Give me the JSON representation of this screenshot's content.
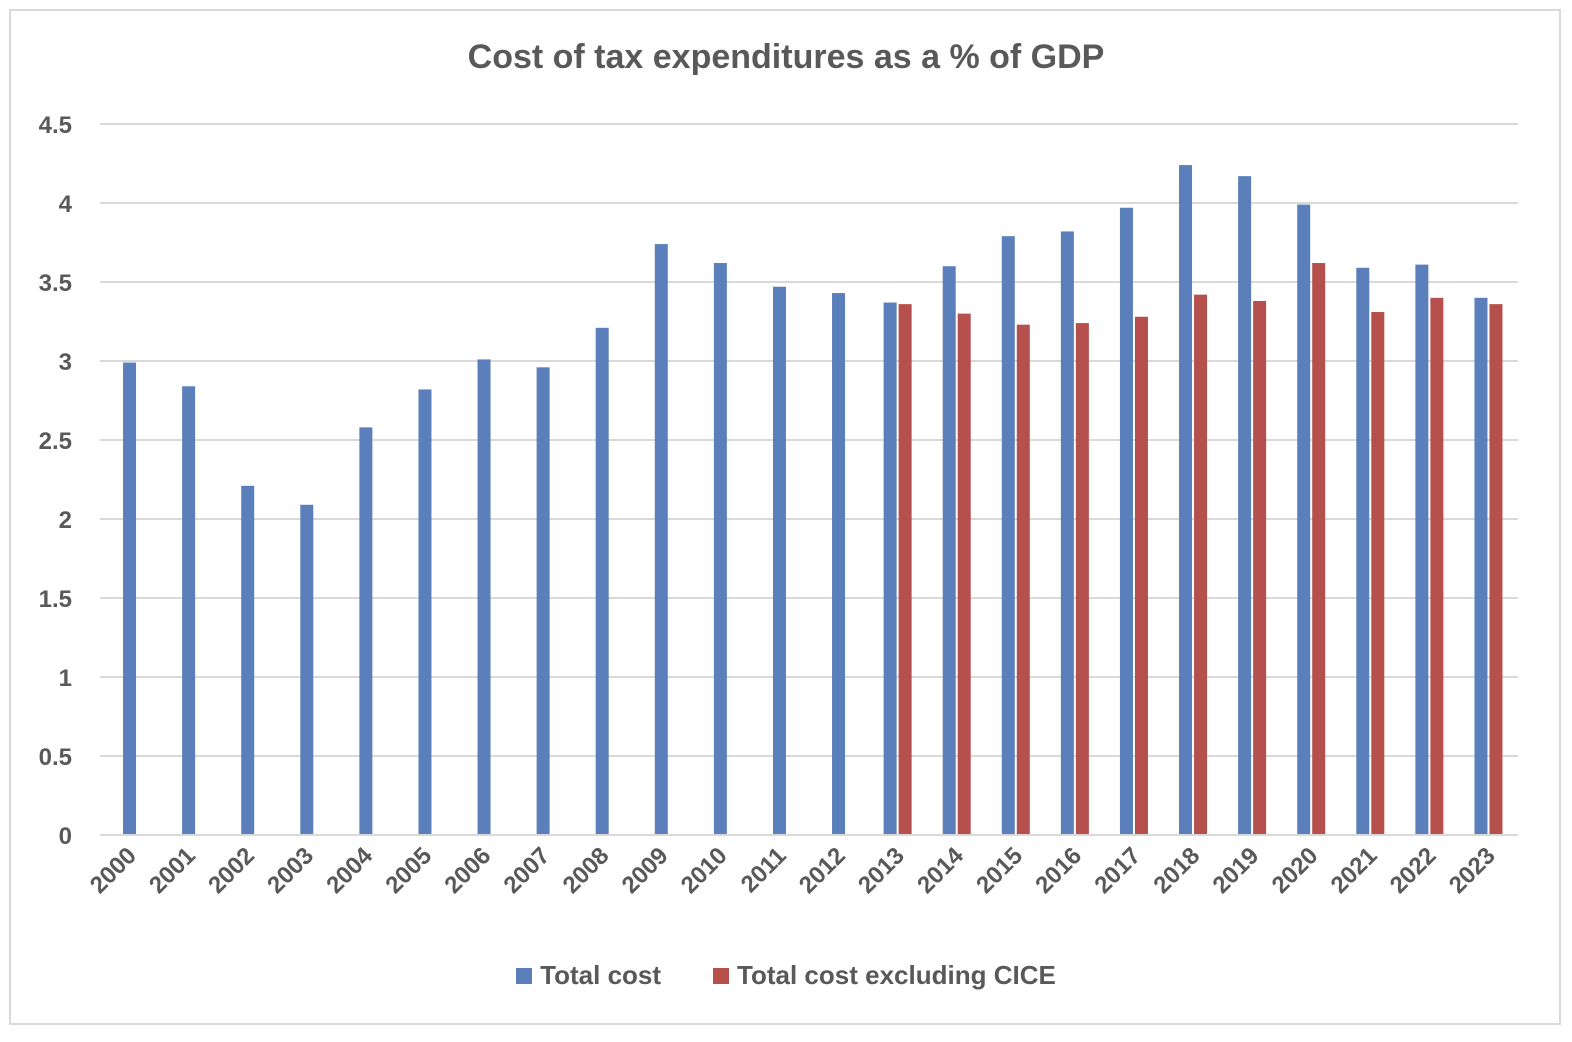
{
  "chart_data": {
    "type": "bar",
    "title": "Cost of tax expenditures as a % of GDP",
    "xlabel": "",
    "ylabel": "",
    "ylim": [
      0,
      4.5
    ],
    "yticks": [
      0,
      0.5,
      1,
      1.5,
      2,
      2.5,
      3,
      3.5,
      4,
      4.5
    ],
    "ytick_labels": [
      "0",
      "0.5",
      "1",
      "1.5",
      "2",
      "2.5",
      "3",
      "3.5",
      "4",
      "4.5"
    ],
    "grid": true,
    "legend_position": "bottom",
    "categories": [
      "2000",
      "2001",
      "2002",
      "2003",
      "2004",
      "2005",
      "2006",
      "2007",
      "2008",
      "2009",
      "2010",
      "2011",
      "2012",
      "2013",
      "2014",
      "2015",
      "2016",
      "2017",
      "2018",
      "2019",
      "2020",
      "2021",
      "2022",
      "2023"
    ],
    "series": [
      {
        "name": "Total cost",
        "color": "#5b7fbb",
        "values": [
          2.99,
          2.84,
          2.21,
          2.09,
          2.58,
          2.82,
          3.01,
          2.96,
          3.21,
          3.74,
          3.62,
          3.47,
          3.43,
          3.37,
          3.6,
          3.79,
          3.82,
          3.97,
          4.24,
          4.17,
          3.99,
          3.59,
          3.61,
          3.4
        ]
      },
      {
        "name": "Total cost excluding CICE",
        "color": "#b5504d",
        "values": [
          null,
          null,
          null,
          null,
          null,
          null,
          null,
          null,
          null,
          null,
          null,
          null,
          null,
          3.36,
          3.3,
          3.23,
          3.24,
          3.28,
          3.42,
          3.38,
          3.62,
          3.31,
          3.4,
          3.36
        ]
      }
    ]
  }
}
